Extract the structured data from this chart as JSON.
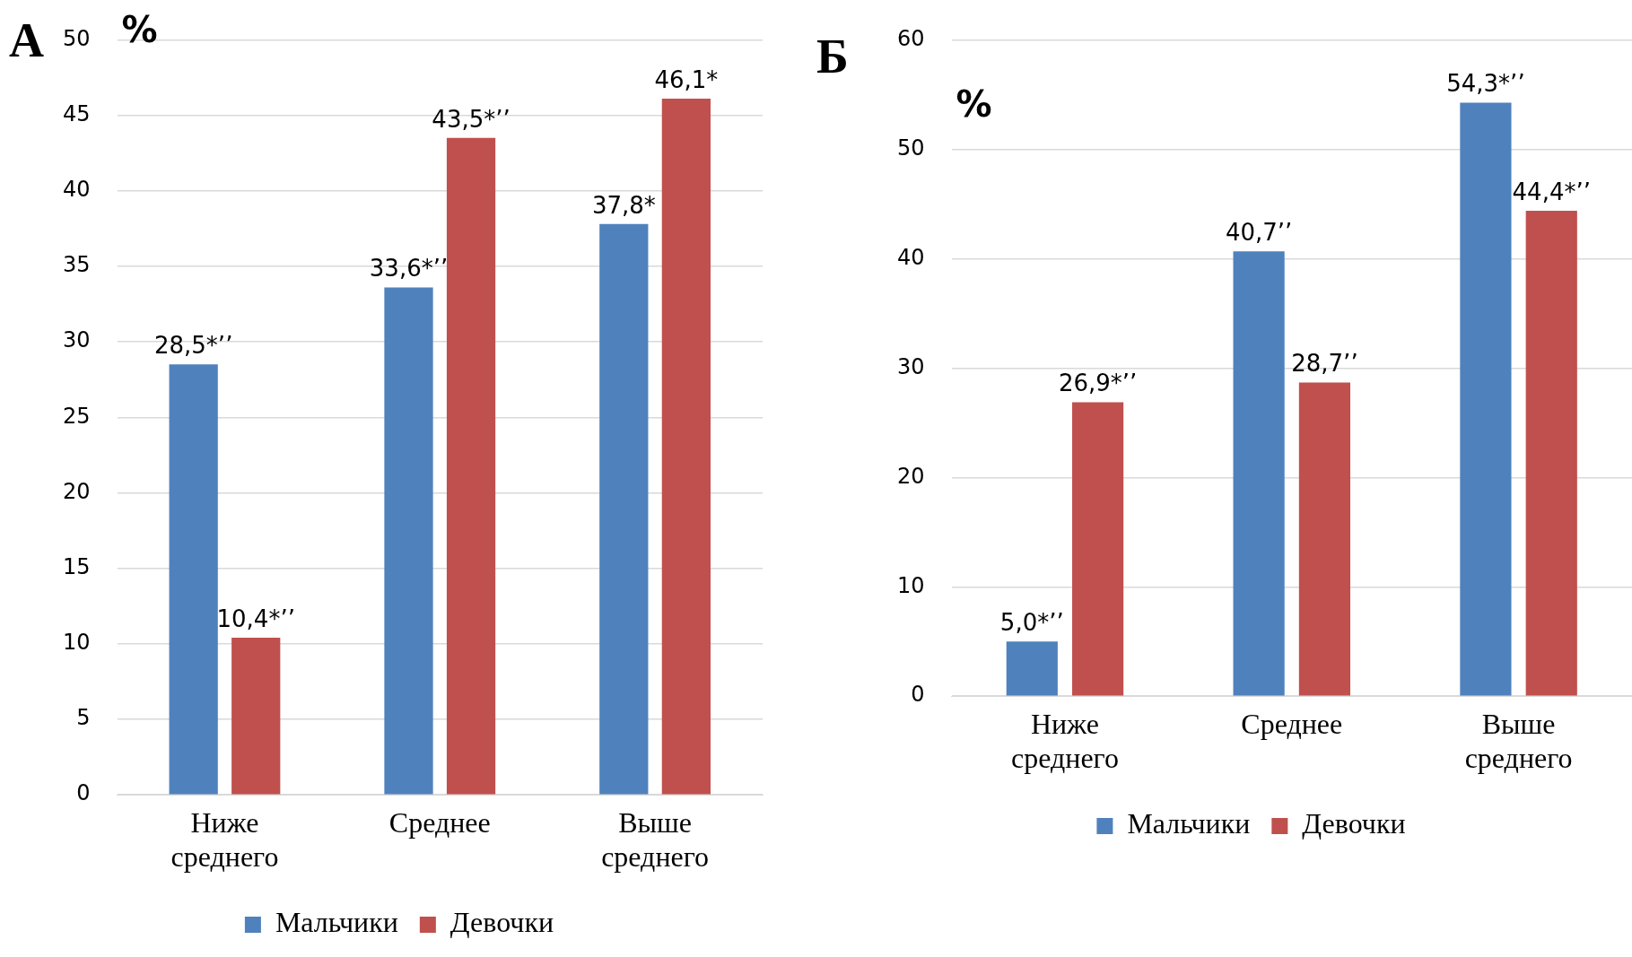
{
  "chart_data": [
    {
      "type": "bar",
      "title": "А",
      "ylabel": "%",
      "categories": [
        "Ниже среднего",
        "Среднее",
        "Выше среднего"
      ],
      "series": [
        {
          "name": "Мальчики",
          "color": "#4f81bd",
          "values": [
            28.5,
            33.6,
            37.8
          ],
          "value_labels": [
            "28,5*’’",
            "33,6*’’",
            "37,8*"
          ]
        },
        {
          "name": "Девочки",
          "color": "#c0504d",
          "values": [
            10.4,
            43.5,
            46.1
          ],
          "value_labels": [
            "10,4*’’",
            "43,5*’’",
            "46,1*"
          ]
        }
      ],
      "ylim": [
        0,
        50
      ],
      "yticks": [
        0,
        5,
        10,
        15,
        20,
        25,
        30,
        35,
        40,
        45,
        50
      ],
      "grid": "y",
      "legend": "bottom"
    },
    {
      "type": "bar",
      "title": "Б",
      "ylabel": "%",
      "categories": [
        "Ниже среднего",
        "Среднее",
        "Выше среднего"
      ],
      "series": [
        {
          "name": "Мальчики",
          "color": "#4f81bd",
          "values": [
            5.0,
            40.7,
            54.3
          ],
          "value_labels": [
            "5,0*’’",
            "40,7’’",
            "54,3*’’"
          ]
        },
        {
          "name": "Девочки",
          "color": "#c0504d",
          "values": [
            26.9,
            28.7,
            44.4
          ],
          "value_labels": [
            "26,9*’’",
            "28,7’’",
            "44,4*’’"
          ]
        }
      ],
      "ylim": [
        0,
        60
      ],
      "yticks": [
        0,
        10,
        20,
        30,
        40,
        50,
        60
      ],
      "grid": "y",
      "legend": "bottom"
    }
  ]
}
